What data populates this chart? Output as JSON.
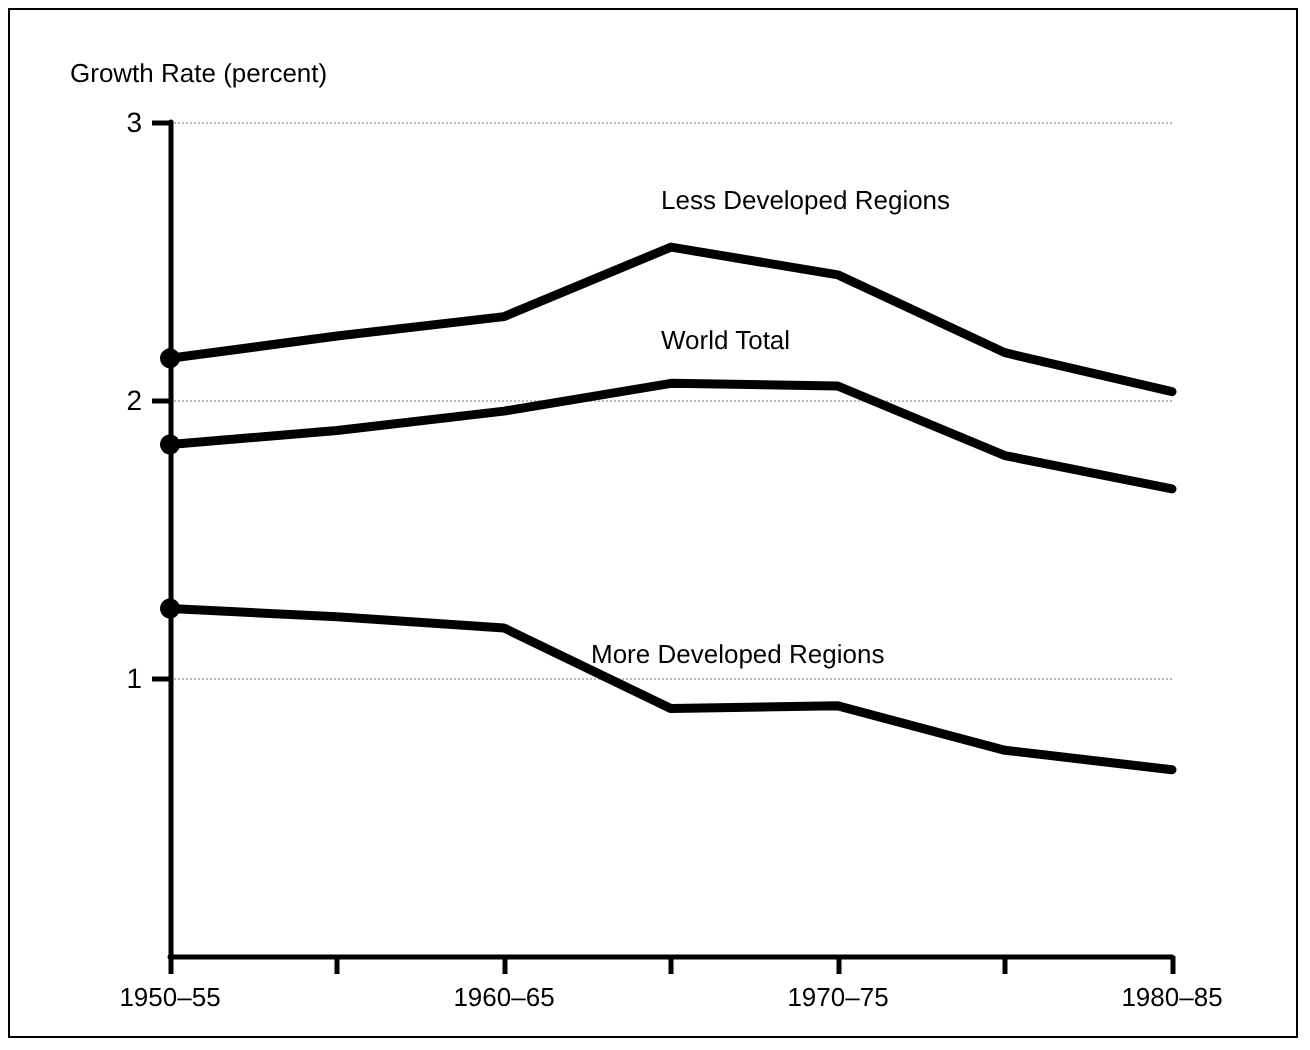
{
  "chart_data": {
    "type": "line",
    "ylabel": "Growth Rate (percent)",
    "categories": [
      "1950–55",
      null,
      "1960–65",
      null,
      "1970–75",
      null,
      "1980–85"
    ],
    "series": [
      {
        "name": "Less Developed Regions",
        "color": "#000000",
        "values": [
          2.15,
          2.23,
          2.3,
          2.55,
          2.45,
          2.17,
          2.03
        ]
      },
      {
        "name": "World Total",
        "color": "#000000",
        "values": [
          1.84,
          1.89,
          1.96,
          2.06,
          2.05,
          1.8,
          1.68
        ]
      },
      {
        "name": "More Developed Regions",
        "color": "#000000",
        "values": [
          1.25,
          1.22,
          1.18,
          0.89,
          0.9,
          0.74,
          0.67
        ]
      }
    ],
    "ylim": [
      0,
      3
    ],
    "yticks": [
      1,
      2,
      3
    ],
    "grid": "y",
    "legend": false,
    "marker": "none",
    "line_style": "solid"
  }
}
